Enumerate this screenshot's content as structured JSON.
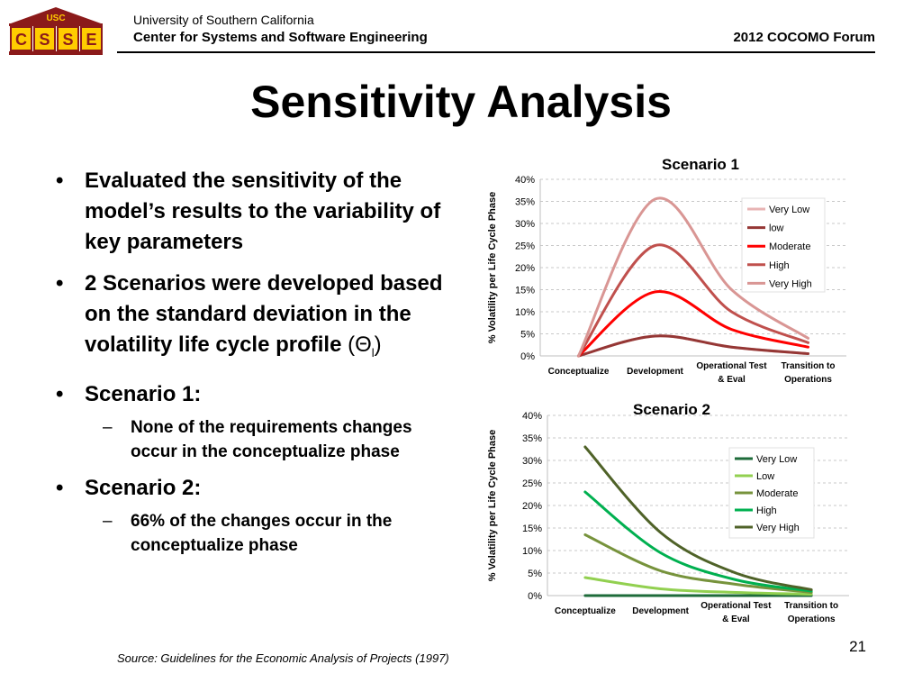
{
  "header": {
    "logo_text": "USC CSSE",
    "university": "University of Southern California",
    "center": "Center for Systems and Software Engineering",
    "forum": "2012 COCOMO Forum"
  },
  "slide": {
    "title": "Sensitivity Analysis",
    "bullets": [
      "Evaluated the sensitivity of the model’s results to the variability of key parameters",
      "2 Scenarios were developed based on the standard deviation in the volatility life cycle profile",
      "Scenario 1:",
      "Scenario 2:"
    ],
    "theta": "(Θ",
    "theta_sub": "l",
    "theta_close": ")",
    "sub_items": [
      "None of the requirements changes occur in the conceptualize phase",
      "66% of the changes occur in the conceptualize phase"
    ],
    "source": "Source: Guidelines for the Economic Analysis of Projects (1997)",
    "page_number": "21"
  },
  "chart_data": [
    {
      "type": "line",
      "title": "Scenario 1",
      "ylabel": "% Volatility per Life Cycle Phase",
      "categories": [
        "Conceptualize",
        "Development",
        "Operational Test & Eval",
        "Transition to Operations"
      ],
      "yticks": [
        "0%",
        "5%",
        "10%",
        "15%",
        "20%",
        "25%",
        "30%",
        "35%",
        "40%"
      ],
      "ylim": [
        0,
        40
      ],
      "legend": "right",
      "grid": true,
      "series": [
        {
          "name": "Very Low",
          "color": "#e8b4b4",
          "values": [
            0,
            4.5,
            2,
            0.5
          ]
        },
        {
          "name": "low",
          "color": "#953735",
          "values": [
            0,
            4.5,
            2,
            0.5
          ]
        },
        {
          "name": "Moderate",
          "color": "#ff0000",
          "values": [
            0,
            14.5,
            6,
            2
          ]
        },
        {
          "name": "High",
          "color": "#c0504d",
          "values": [
            0,
            25,
            10,
            3
          ]
        },
        {
          "name": "Very High",
          "color": "#d99694",
          "values": [
            0,
            35.5,
            15,
            4
          ]
        }
      ]
    },
    {
      "type": "line",
      "title": "Scenario 2",
      "ylabel": "% Volatility per Life Cycle Phase",
      "categories": [
        "Conceptualize",
        "Development",
        "Operational Test & Eval",
        "Transition to Operations"
      ],
      "yticks": [
        "0%",
        "5%",
        "10%",
        "15%",
        "20%",
        "25%",
        "30%",
        "35%",
        "40%"
      ],
      "ylim": [
        0,
        40
      ],
      "legend": "right",
      "grid": true,
      "series": [
        {
          "name": "Very Low",
          "color": "#1e6b3a",
          "values": [
            0,
            0,
            0,
            0
          ]
        },
        {
          "name": "Low",
          "color": "#92d050",
          "values": [
            4,
            1.5,
            0.7,
            0.3
          ]
        },
        {
          "name": "Moderate",
          "color": "#77933c",
          "values": [
            13.5,
            5.5,
            2.5,
            0.7
          ]
        },
        {
          "name": "High",
          "color": "#00b050",
          "values": [
            23,
            9.5,
            3.5,
            1
          ]
        },
        {
          "name": "Very High",
          "color": "#4f6228",
          "values": [
            33,
            14,
            5,
            1.3
          ]
        }
      ]
    }
  ]
}
